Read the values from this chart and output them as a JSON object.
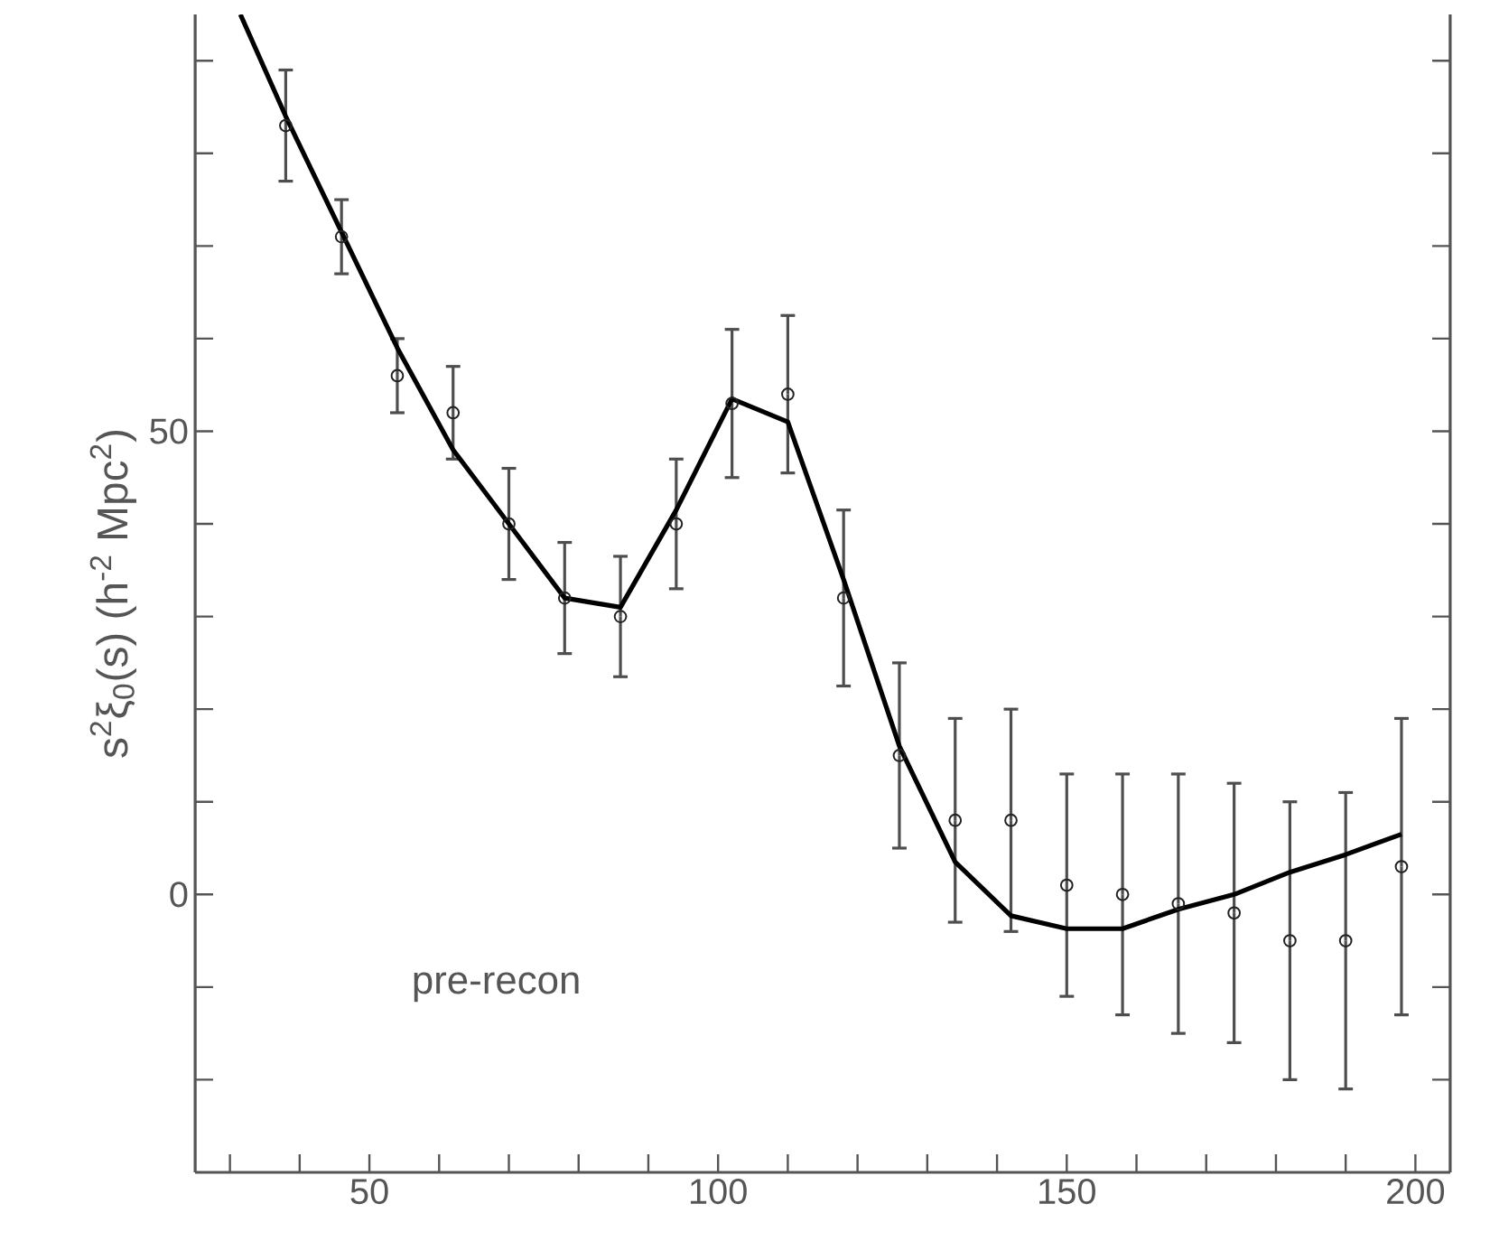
{
  "chart_data": {
    "type": "scatter",
    "ylabel": "s$^{2}$ξ$_{0}$(s) (h$^{-2}$ Mpc$^{2}$)",
    "annotations": [
      "pre-recon"
    ],
    "xlim": [
      25,
      205
    ],
    "ylim": [
      -30,
      95
    ],
    "xticks": [
      {
        "value": 30,
        "label": null
      },
      {
        "value": 40,
        "label": null
      },
      50,
      {
        "value": 60,
        "label": null
      },
      {
        "value": 70,
        "label": null
      },
      {
        "value": 80,
        "label": null
      },
      {
        "value": 90,
        "label": null
      },
      100,
      {
        "value": 110,
        "label": null
      },
      {
        "value": 120,
        "label": null
      },
      {
        "value": 130,
        "label": null
      },
      {
        "value": 140,
        "label": null
      },
      150,
      {
        "value": 160,
        "label": null
      },
      {
        "value": 170,
        "label": null
      },
      {
        "value": 180,
        "label": null
      },
      {
        "value": 190,
        "label": null
      },
      200
    ],
    "yticks": [
      {
        "value": -20,
        "label": null
      },
      {
        "value": -10,
        "label": null
      },
      0,
      {
        "value": 10,
        "label": null
      },
      {
        "value": 20,
        "label": null
      },
      {
        "value": 30,
        "label": null
      },
      {
        "value": 40,
        "label": null
      },
      50,
      {
        "value": 60,
        "label": null
      },
      {
        "value": 70,
        "label": null
      },
      {
        "value": 80,
        "label": null
      },
      {
        "value": 90,
        "label": null
      }
    ],
    "marker": "circle",
    "series": [
      {
        "color": "#222222",
        "x": [
          38,
          46,
          54,
          62,
          70,
          78,
          86,
          94,
          102,
          110,
          118,
          126,
          134,
          142,
          150,
          158,
          166,
          174,
          182,
          190,
          198
        ],
        "values": [
          83,
          71,
          56,
          52,
          40,
          32,
          30,
          40,
          53,
          54,
          32,
          15,
          8,
          8,
          1,
          0,
          -1,
          -2,
          -5,
          -5,
          3
        ],
        "errors": [
          6,
          4,
          4,
          5,
          6,
          6,
          6.5,
          7,
          8,
          8.5,
          9.5,
          10,
          11,
          12,
          12,
          13,
          14,
          14,
          15,
          16,
          16
        ]
      },
      {
        "type": "line",
        "color": "#000000",
        "line_style": "solid",
        "marker": "none",
        "x": [
          31.5,
          38,
          46,
          54,
          62,
          70,
          78,
          86,
          94,
          102,
          110,
          118,
          126,
          134,
          142,
          150,
          158,
          166,
          174,
          182,
          190,
          198
        ],
        "values": [
          95,
          84,
          71.5,
          59,
          48,
          40,
          32,
          31,
          41.5,
          53.5,
          51,
          34,
          16,
          3.5,
          -2.3,
          -3.7,
          -3.7,
          -1.6,
          0,
          2.4,
          4.3,
          6.5
        ]
      }
    ]
  }
}
